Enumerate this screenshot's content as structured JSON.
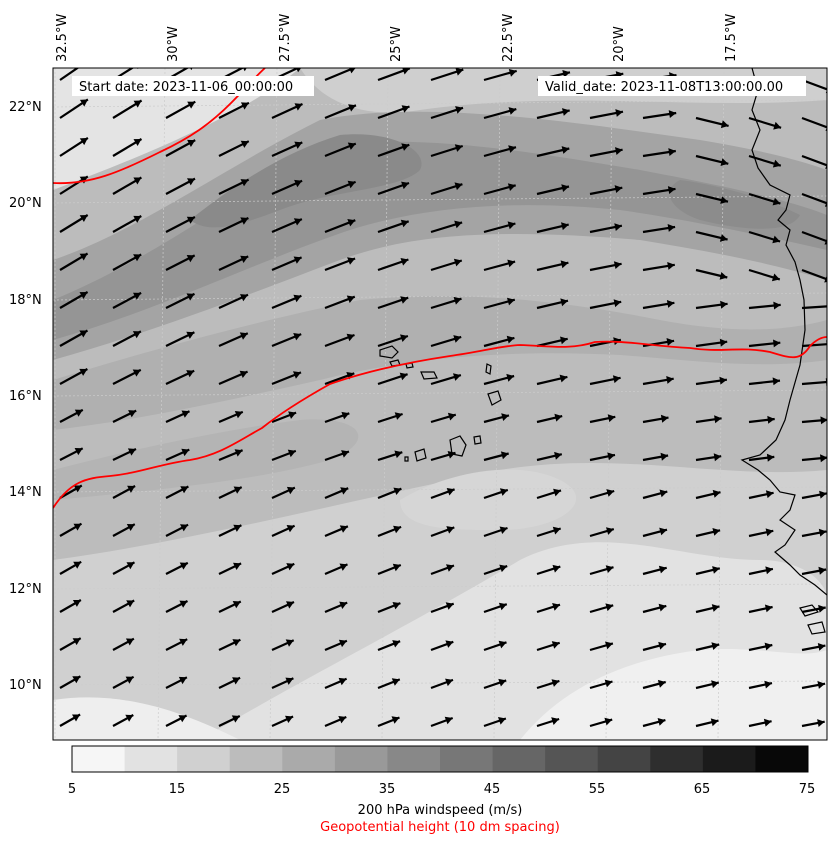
{
  "header": {
    "start_date": "Start date: 2023-11-06_00:00:00",
    "valid_date": "Valid_date: 2023-11-08T13:00:00.00"
  },
  "axes": {
    "lon_labels": [
      "32.5°W",
      "30°W",
      "27.5°W",
      "25°W",
      "22.5°W",
      "20°W",
      "17.5°W"
    ],
    "lat_labels": [
      "22°N",
      "20°N",
      "18°N",
      "16°N",
      "14°N",
      "12°N",
      "10°N"
    ]
  },
  "colorbar": {
    "ticks": [
      "5",
      "15",
      "25",
      "35",
      "45",
      "55",
      "65",
      "75"
    ],
    "title": "200 hPa windspeed (m/s)",
    "subtitle": "Geopotential height (10 dm spacing)",
    "subtitle_color": "#ff0000",
    "colors": [
      "#f6f6f6",
      "#e2e2e2",
      "#d0d0d0",
      "#bcbcbc",
      "#aaaaaa",
      "#999999",
      "#888888",
      "#777777",
      "#666666",
      "#555555",
      "#444444",
      "#2e2e2e",
      "#1b1b1b",
      "#080808"
    ]
  },
  "map": {
    "contour_color": "#ff0000",
    "coastline_color": "#000000",
    "arrow_color": "#000000"
  }
}
